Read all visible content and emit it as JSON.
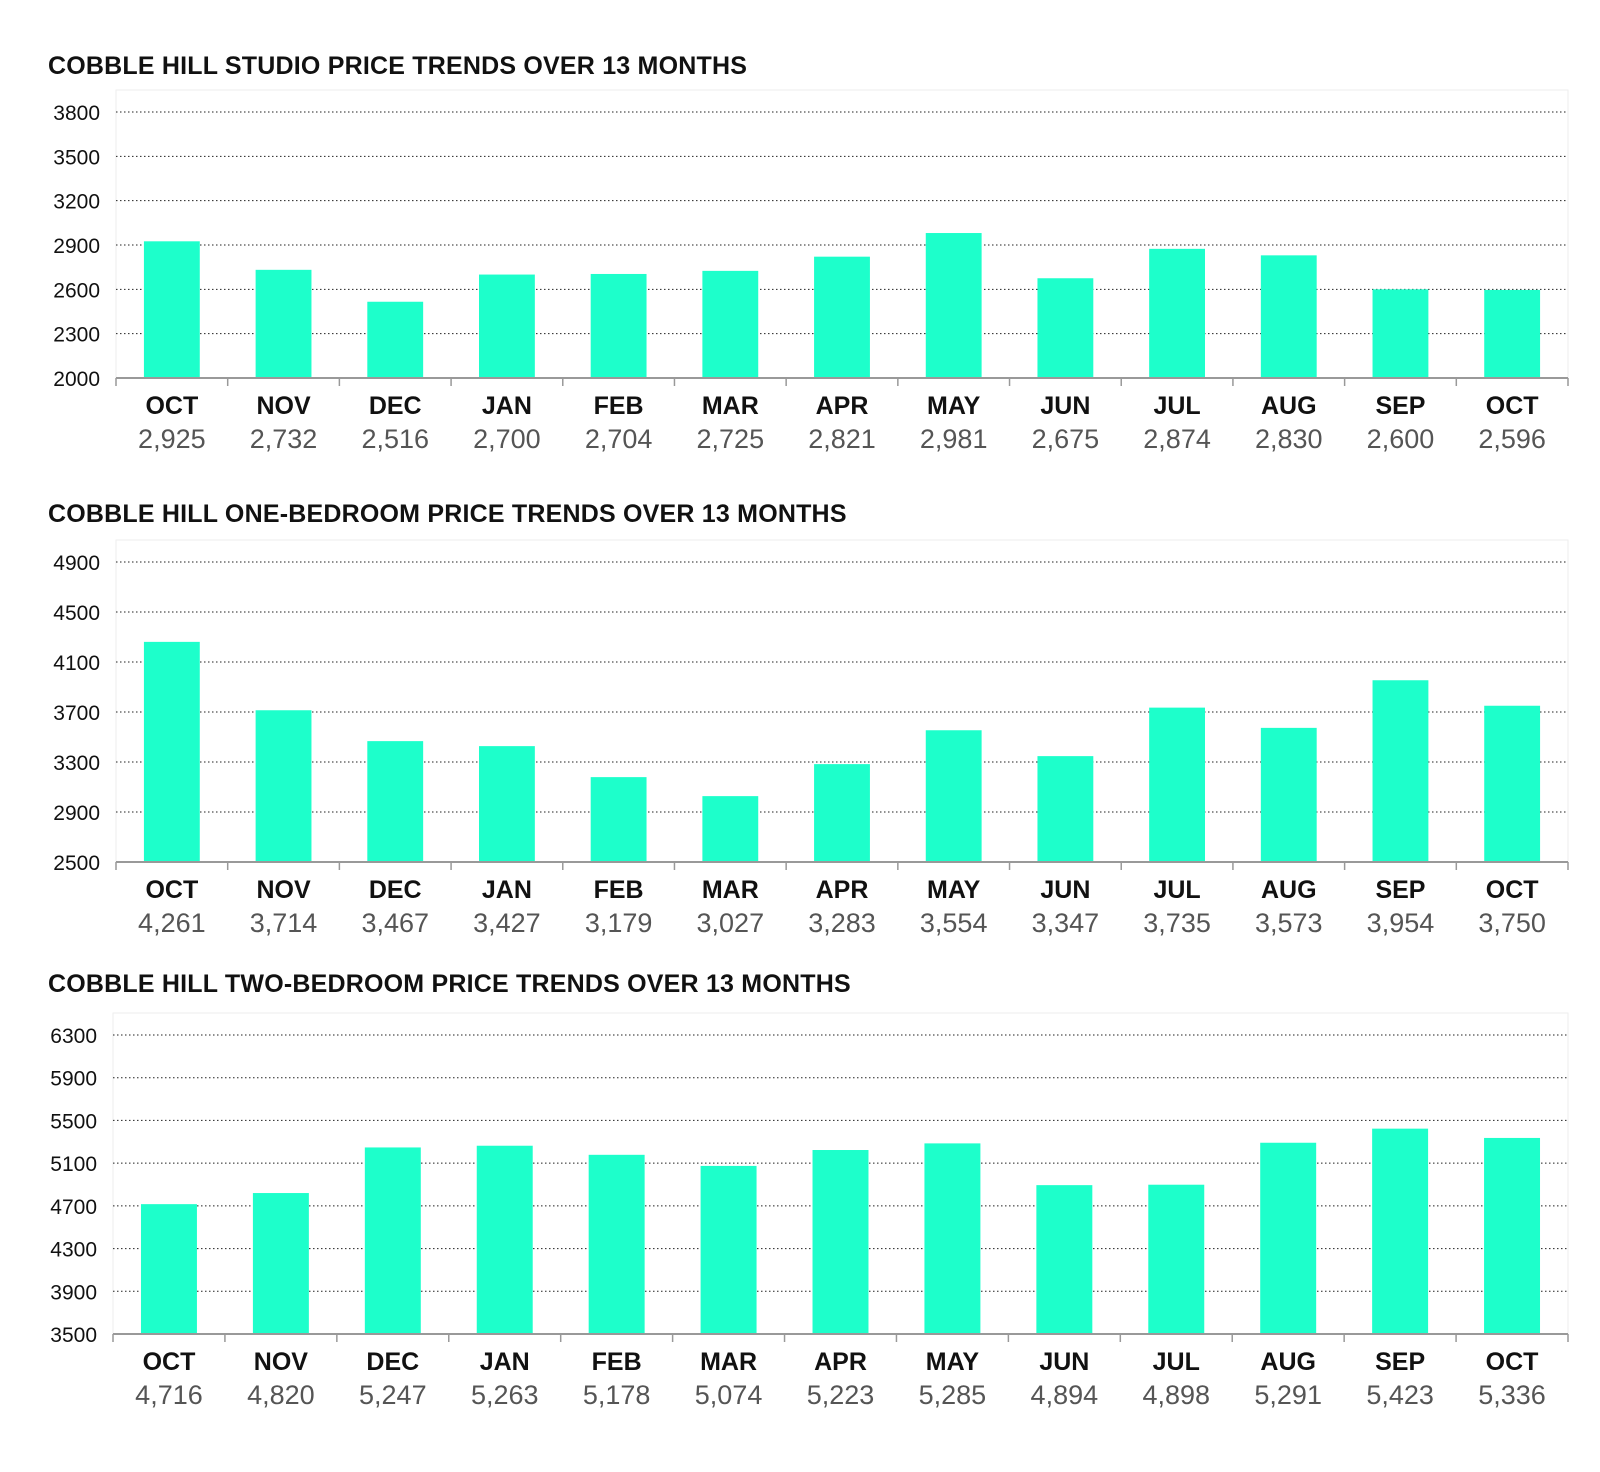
{
  "colors": {
    "bar": "#1dffcb",
    "grid": "#222222",
    "axis": "#999999",
    "plot_frame": "#eeeeee",
    "value_text": "#555555"
  },
  "chart_data": [
    {
      "type": "bar",
      "title": "COBBLE HILL STUDIO PRICE TRENDS OVER 13 MONTHS",
      "categories": [
        "OCT",
        "NOV",
        "DEC",
        "JAN",
        "FEB",
        "MAR",
        "APR",
        "MAY",
        "JUN",
        "JUL",
        "AUG",
        "SEP",
        "OCT"
      ],
      "values": [
        2925,
        2732,
        2516,
        2700,
        2704,
        2725,
        2821,
        2981,
        2675,
        2874,
        2830,
        2600,
        2596
      ],
      "value_labels": [
        "2,925",
        "2,732",
        "2,516",
        "2,700",
        "2,704",
        "2,725",
        "2,821",
        "2,981",
        "2,675",
        "2,874",
        "2,830",
        "2,600",
        "2,596"
      ],
      "yticks": [
        "2000",
        "2300",
        "2600",
        "2900",
        "3200",
        "3500",
        "3800"
      ],
      "ylim": [
        2000,
        3800
      ],
      "grid": true,
      "grid_style": "dotted",
      "legend": "none"
    },
    {
      "type": "bar",
      "title": "COBBLE HILL ONE-BEDROOM PRICE TRENDS OVER 13 MONTHS",
      "categories": [
        "OCT",
        "NOV",
        "DEC",
        "JAN",
        "FEB",
        "MAR",
        "APR",
        "MAY",
        "JUN",
        "JUL",
        "AUG",
        "SEP",
        "OCT"
      ],
      "values": [
        4261,
        3714,
        3467,
        3427,
        3179,
        3027,
        3283,
        3554,
        3347,
        3735,
        3573,
        3954,
        3750
      ],
      "value_labels": [
        "4,261",
        "3,714",
        "3,467",
        "3,427",
        "3,179",
        "3,027",
        "3,283",
        "3,554",
        "3,347",
        "3,735",
        "3,573",
        "3,954",
        "3,750"
      ],
      "yticks": [
        "2500",
        "2900",
        "3300",
        "3700",
        "4100",
        "4500",
        "4900"
      ],
      "ylim": [
        2500,
        4900
      ],
      "grid": true,
      "grid_style": "dotted",
      "legend": "none"
    },
    {
      "type": "bar",
      "title": "COBBLE HILL TWO-BEDROOM PRICE TRENDS OVER 13 MONTHS",
      "categories": [
        "OCT",
        "NOV",
        "DEC",
        "JAN",
        "FEB",
        "MAR",
        "APR",
        "MAY",
        "JUN",
        "JUL",
        "AUG",
        "SEP",
        "OCT"
      ],
      "values": [
        4716,
        4820,
        5247,
        5263,
        5178,
        5074,
        5223,
        5285,
        4894,
        4898,
        5291,
        5423,
        5336
      ],
      "value_labels": [
        "4,716",
        "4,820",
        "5,247",
        "5,263",
        "5,178",
        "5,074",
        "5,223",
        "5,285",
        "4,894",
        "4,898",
        "5,291",
        "5,423",
        "5,336"
      ],
      "yticks": [
        "3500",
        "3900",
        "4300",
        "4700",
        "5100",
        "5500",
        "5900",
        "6300"
      ],
      "ylim": [
        3500,
        6300
      ],
      "grid": true,
      "grid_style": "dotted",
      "legend": "none"
    }
  ]
}
